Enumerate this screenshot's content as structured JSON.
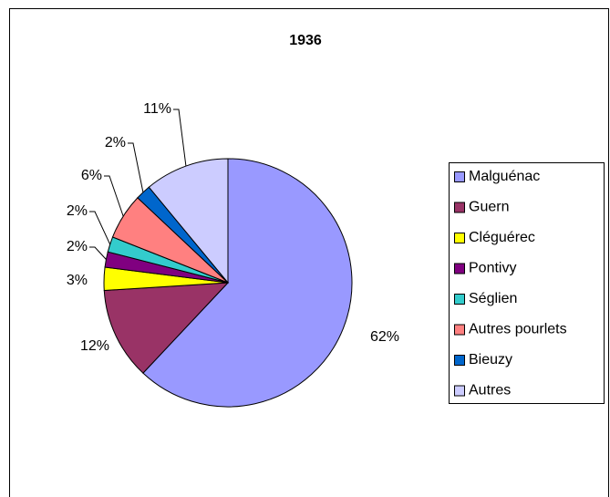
{
  "chart_data": {
    "type": "pie",
    "title": "1936",
    "categories": [
      "Malguénac",
      "Guern",
      "Cléguérec",
      "Pontivy",
      "Séglien",
      "Autres pourlets",
      "Bieuzy",
      "Autres"
    ],
    "values": [
      62,
      12,
      3,
      2,
      2,
      6,
      2,
      11
    ],
    "value_labels": [
      "62%",
      "12%",
      "3%",
      "2%",
      "2%",
      "6%",
      "2%",
      "11%"
    ],
    "colors": [
      "#9999ff",
      "#993366",
      "#ffff00",
      "#800080",
      "#33cccc",
      "#ff8080",
      "#0066cc",
      "#ccccff"
    ],
    "legend": "right"
  }
}
